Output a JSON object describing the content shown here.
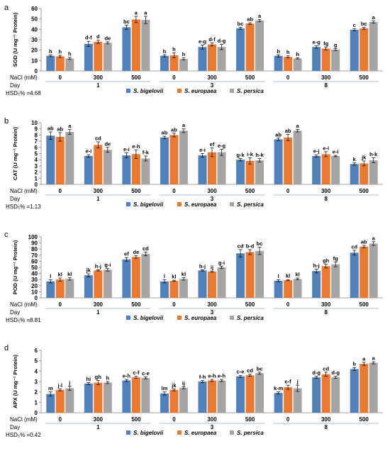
{
  "figure": {
    "colors": {
      "S. bigelovii": "#4f81bd",
      "S. europaea": "#f0782d",
      "S. persica": "#a5a5a5"
    },
    "x_row_labels": {
      "nacl": "NaCl (mM)",
      "day": "Day"
    },
    "nacl_levels": [
      "0",
      "300",
      "500"
    ],
    "days": [
      "1",
      "3",
      "8"
    ],
    "legend": [
      "S. bigelovii",
      "S. europaea",
      "S. persica"
    ]
  },
  "chart_data": [
    {
      "panel": "a",
      "type": "bar",
      "ylabel": "SOD (U mg⁻¹ Protein)",
      "ylim": [
        0,
        60
      ],
      "yticks": [
        0,
        10,
        20,
        30,
        40,
        50,
        60
      ],
      "hsd": "HSD₅% =4.68",
      "categories": [
        "Day 1 / 0",
        "Day 1 / 300",
        "Day 1 / 500",
        "Day 3 / 0",
        "Day 3 / 300",
        "Day 3 / 500",
        "Day 8 / 0",
        "Day 8 / 300",
        "Day 8 / 500"
      ],
      "series": [
        {
          "name": "S. bigelovii",
          "values": [
            14.5,
            26,
            42,
            14.5,
            23,
            41,
            14.5,
            23,
            39.5
          ],
          "errors": [
            0.8,
            2.5,
            2,
            1,
            2,
            1,
            1,
            1.2,
            1
          ],
          "labels": [
            "h",
            "d-f",
            "bc",
            "h",
            "e-g",
            "bc",
            "h",
            "e-g",
            "c"
          ]
        },
        {
          "name": "S. europaea",
          "values": [
            14,
            28,
            49.5,
            15,
            25.5,
            45.5,
            13.5,
            21.5,
            41
          ],
          "errors": [
            1,
            1.5,
            3,
            2.5,
            1.5,
            0.8,
            1,
            1.5,
            1
          ],
          "labels": [
            "h",
            "d",
            "a",
            "h",
            "d-f",
            "ab",
            "h",
            "fg",
            "bc"
          ]
        },
        {
          "name": "S. persica",
          "values": [
            12,
            27,
            49,
            11.5,
            23,
            48.5,
            12,
            20.5,
            47
          ],
          "errors": [
            1,
            1,
            3.5,
            1,
            2.5,
            1,
            0.5,
            1,
            1
          ],
          "labels": [
            "h",
            "de",
            "a",
            "h",
            "d-g",
            "a",
            "h",
            "g",
            "a"
          ]
        }
      ]
    },
    {
      "panel": "b",
      "type": "bar",
      "ylabel": "CAT (U mg⁻¹ Protein)",
      "ylim": [
        0,
        10
      ],
      "yticks": [
        0,
        1,
        2,
        3,
        4,
        5,
        6,
        7,
        8,
        9,
        10
      ],
      "hsd": "HSD₅% =1.13",
      "categories": [
        "Day 1 / 0",
        "Day 1 / 300",
        "Day 1 / 500",
        "Day 3 / 0",
        "Day 3 / 300",
        "Day 3 / 500",
        "Day 8 / 0",
        "Day 8 / 300",
        "Day 8 / 500"
      ],
      "series": [
        {
          "name": "S. bigelovii",
          "values": [
            7.9,
            4.6,
            4.7,
            7.6,
            4.7,
            4,
            7.3,
            4.6,
            3.3
          ],
          "errors": [
            0.6,
            0.2,
            0.4,
            0.2,
            0.3,
            0.2,
            0.2,
            0.2,
            0.2
          ],
          "labels": [
            "ab",
            "e-i",
            "e-i",
            "ab",
            "e-i",
            "g-k",
            "ab",
            "e-j",
            "k"
          ]
        },
        {
          "name": "S. europaea",
          "values": [
            7.7,
            6.4,
            4.9,
            8,
            5.2,
            3.8,
            7.6,
            4.9,
            3.4
          ],
          "errors": [
            0.7,
            0.5,
            0.7,
            0.3,
            0.7,
            0.5,
            0.5,
            0.4,
            0.4
          ],
          "labels": [
            "ab",
            "cd",
            "e-h",
            "ab",
            "ef",
            "i-k",
            "ab",
            "e-i",
            "jk"
          ]
        },
        {
          "name": "S. persica",
          "values": [
            8.5,
            5.6,
            4.2,
            8.7,
            5.2,
            3.9,
            8.7,
            4.6,
            3.9
          ],
          "errors": [
            0.4,
            0.4,
            0.4,
            0.3,
            0.5,
            0.3,
            0.2,
            0.1,
            0.4
          ],
          "labels": [
            "a",
            "de",
            "f-k",
            "a",
            "e-g",
            "h-k",
            "a",
            "e-i",
            "h-k"
          ]
        }
      ]
    },
    {
      "panel": "c",
      "type": "bar",
      "ylabel": "POD (U mg⁻¹ Protein)",
      "ylim": [
        0,
        100
      ],
      "yticks": [
        0,
        10,
        20,
        30,
        40,
        50,
        60,
        70,
        80,
        90,
        100
      ],
      "hsd": "HSD₅% =8.81",
      "categories": [
        "Day 1 / 0",
        "Day 1 / 300",
        "Day 1 / 500",
        "Day 3 / 0",
        "Day 3 / 300",
        "Day 3 / 500",
        "Day 8 / 0",
        "Day 8 / 300",
        "Day 8 / 500"
      ],
      "series": [
        {
          "name": "S. bigelovii",
          "values": [
            27,
            37,
            63,
            27,
            45,
            73,
            28,
            44,
            74
          ],
          "errors": [
            2.5,
            2.5,
            3,
            2.5,
            1,
            6,
            1.5,
            3,
            4
          ],
          "labels": [
            "l",
            "jk",
            "ef",
            "l",
            "h-j",
            "cd",
            "l",
            "h-j",
            "cd"
          ]
        },
        {
          "name": "S. europaea",
          "values": [
            30,
            45,
            67,
            28,
            43,
            75,
            29,
            52,
            84
          ],
          "errors": [
            2.5,
            1,
            2,
            1,
            1,
            4,
            1,
            3,
            2
          ],
          "labels": [
            "kl",
            "h-j",
            "de",
            "kl",
            "ij",
            "b-d",
            "kl",
            "gh",
            "ab"
          ]
        },
        {
          "name": "S. persica",
          "values": [
            31,
            46,
            72,
            31,
            50,
            77,
            31,
            55,
            89
          ],
          "errors": [
            2,
            2,
            3,
            2,
            2,
            6,
            1.5,
            4,
            3
          ],
          "labels": [
            "kl",
            "g-i",
            "cd",
            "kl",
            "g-i",
            "bc",
            "kl",
            "fg",
            "a"
          ]
        }
      ]
    },
    {
      "panel": "d",
      "type": "bar",
      "ylabel": "APX (U mg⁻¹ Protein)",
      "ylim": [
        0,
        6
      ],
      "yticks": [
        0,
        1,
        2,
        3,
        4,
        5,
        6
      ],
      "hsd": "HSD₅% =0.42",
      "categories": [
        "Day 1 / 0",
        "Day 1 / 300",
        "Day 1 / 500",
        "Day 3 / 0",
        "Day 3 / 300",
        "Day 3 / 500",
        "Day 8 / 0",
        "Day 8 / 300",
        "Day 8 / 500"
      ],
      "series": [
        {
          "name": "S. bigelovii",
          "values": [
            1.8,
            2.8,
            3.1,
            1.85,
            3,
            3.5,
            1.9,
            3.4,
            4.2
          ],
          "errors": [
            0.2,
            0.1,
            0.1,
            0.15,
            0.1,
            0.1,
            0.1,
            0.1,
            0.15
          ],
          "labels": [
            "m",
            "hi",
            "e-h",
            "lm",
            "f-h",
            "c-e",
            "k-m",
            "d-g",
            "b"
          ]
        },
        {
          "name": "S. europaea",
          "values": [
            2.2,
            2.9,
            3.4,
            2.2,
            3.1,
            3.6,
            2.45,
            3.7,
            4.7
          ],
          "errors": [
            0.1,
            0.2,
            0.1,
            0.1,
            0.1,
            0.1,
            0.2,
            0.2,
            0.15
          ],
          "labels": [
            "j-l",
            "gh",
            "c-f",
            "jk",
            "e-h",
            "cd",
            "c-f",
            "cd",
            "a"
          ]
        },
        {
          "name": "S. persica",
          "values": [
            2.35,
            2.9,
            3.35,
            2.4,
            3.1,
            3.8,
            2.35,
            3.4,
            4.8
          ],
          "errors": [
            0.2,
            0.1,
            0.1,
            0.1,
            0.1,
            0.1,
            0.3,
            0.1,
            0.1
          ],
          "labels": [
            "j",
            "h",
            "c-e",
            "ij",
            "e-h",
            "bc",
            "j",
            "d-g",
            "a"
          ]
        }
      ]
    }
  ]
}
